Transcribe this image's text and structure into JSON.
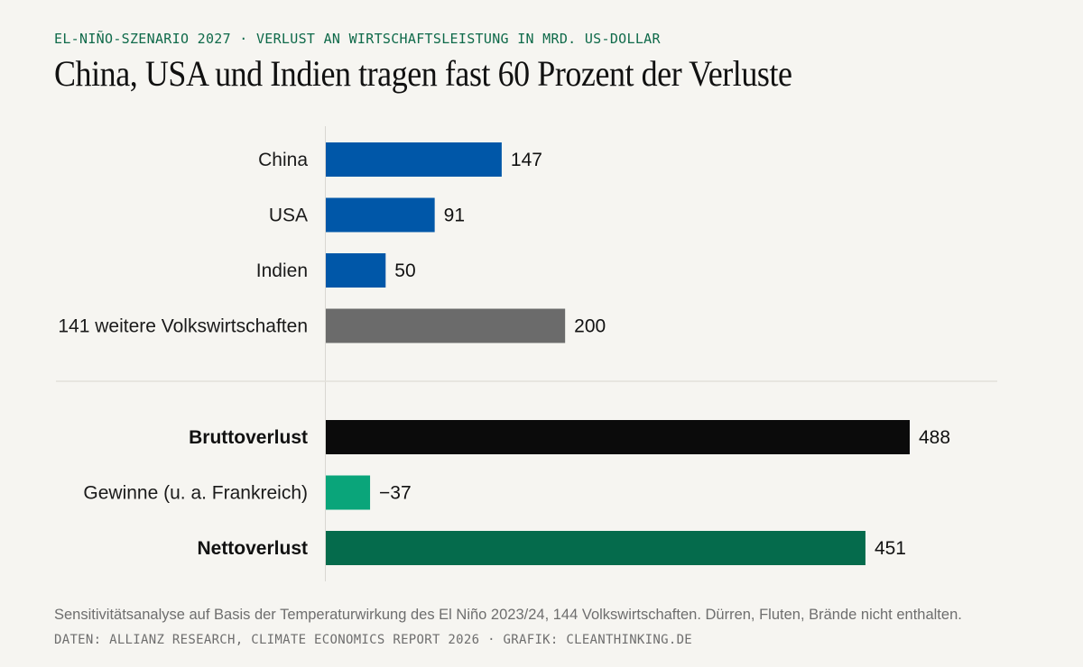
{
  "header": {
    "kicker": "EL-NIÑO-SZENARIO 2027 · VERLUST AN WIRTSCHAFTSLEISTUNG IN MRD. US-DOLLAR",
    "title": "China, USA und Indien tragen fast 60 Prozent der Verluste"
  },
  "chart_data": {
    "type": "bar",
    "orientation": "horizontal",
    "unit": "Mrd. US-Dollar",
    "grid": false,
    "groups": [
      {
        "categories": [
          "China",
          "USA",
          "Indien",
          "141 weitere Volkswirtschaften"
        ],
        "values": [
          147,
          91,
          50,
          200
        ],
        "labels": [
          "147",
          "91",
          "50",
          "200"
        ],
        "colors": [
          "#0057a8",
          "#0057a8",
          "#0057a8",
          "#6b6b6b"
        ],
        "bold": [
          false,
          false,
          false,
          false
        ]
      },
      {
        "categories": [
          "Bruttoverlust",
          "Gewinne (u. a. Frankreich)",
          "Nettoverlust"
        ],
        "values": [
          488,
          -37,
          451
        ],
        "labels": [
          "488",
          "−37",
          "451"
        ],
        "colors": [
          "#0b0b0b",
          "#0aa57a",
          "#056b4c"
        ],
        "bold": [
          true,
          false,
          true
        ]
      }
    ]
  },
  "footer": {
    "note": "Sensitivitätsanalyse auf Basis der Temperaturwirkung des El Niño 2023/24, 144 Volkswirtschaften. Dürren, Fluten, Brände nicht enthalten.",
    "source": "DATEN: ALLIANZ RESEARCH, CLIMATE ECONOMICS REPORT 2026 · GRAFIK: CLEANTHINKING.DE"
  }
}
